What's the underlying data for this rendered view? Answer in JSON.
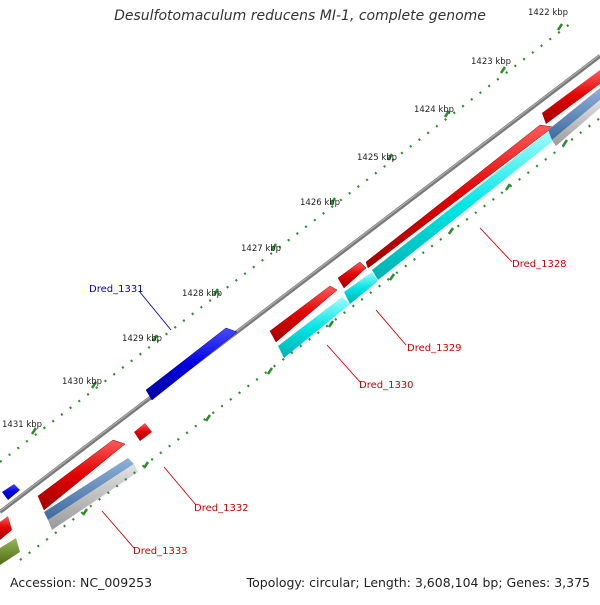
{
  "title": "Desulfotomaculum reducens MI-1, complete genome",
  "footer": {
    "accession": "Accession: NC_009253",
    "summary": "Topology: circular; Length: 3,608,104 bp; Genes: 3,375"
  },
  "scale_labels": [
    "1422 kbp",
    "1423 kbp",
    "1424 kbp",
    "1425 kbp",
    "1426 kbp",
    "1427 kbp",
    "1428 kbp",
    "1429 kbp",
    "1430 kbp",
    "1431 kbp"
  ],
  "gene_labels": {
    "dred_1328": "Dred_1328",
    "dred_1329": "Dred_1329",
    "dred_1330": "Dred_1330",
    "dred_1331": "Dred_1331",
    "dred_1332": "Dred_1332",
    "dred_1333": "Dred_1333"
  },
  "colors": {
    "backbone": "#7a7a7a",
    "scale_ticks": "#2e8b2e",
    "cds_forward": "#e00000",
    "cds_reverse": "#0000e0",
    "cyan_feature": "#00e5e5",
    "steel_feature": "#5b86b8",
    "grey_feature": "#b0b0b0",
    "olive_feature": "#6b8e23",
    "label_red": "#cc0000",
    "label_blue": "#0000cc"
  }
}
